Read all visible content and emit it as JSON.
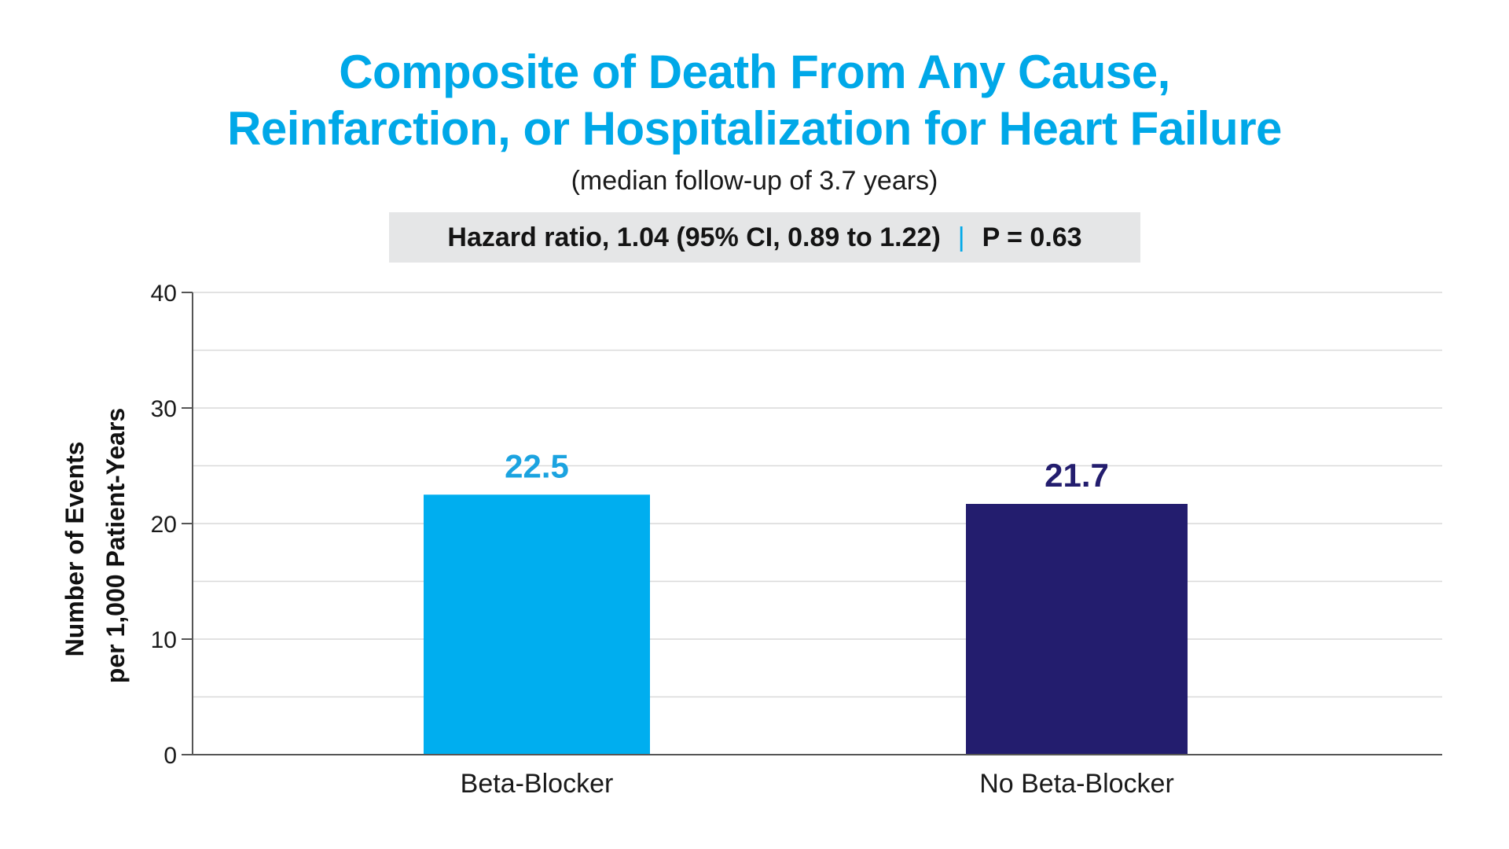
{
  "header": {
    "title_line_1": "Composite of Death From Any Cause,",
    "title_line_2": "Reinfarction, or Hospitalization for Heart Failure",
    "subtitle": "(median follow-up of 3.7 years)"
  },
  "stats": {
    "hazard_ratio": "Hazard ratio, 1.04 (95% CI, 0.89 to 1.22)",
    "separator": "|",
    "p_value": "P = 0.63"
  },
  "colors": {
    "accent": "#00a8e8",
    "beta_blocker": "#00aeef",
    "no_beta_blocker": "#231d6e",
    "gridline": "#d9d9d9",
    "axis": "#555555",
    "stats_background": "#e5e6e7"
  },
  "chart_data": {
    "type": "bar",
    "title": "Composite of Death From Any Cause, Reinfarction, or Hospitalization for Heart Failure",
    "subtitle": "(median follow-up of 3.7 years)",
    "xlabel": "",
    "ylabel_lines": [
      "Number of Events",
      "per 1,000 Patient-Years"
    ],
    "ylim": [
      0,
      40
    ],
    "y_ticks": [
      0,
      10,
      20,
      30,
      40
    ],
    "y_tick_labels": [
      "0",
      "10",
      "20",
      "30",
      "40"
    ],
    "minor_gridlines": [
      5,
      15,
      25,
      35
    ],
    "grid": true,
    "categories": [
      "Beta-Blocker",
      "No Beta-Blocker"
    ],
    "values": [
      22.5,
      21.7
    ],
    "value_labels": [
      "22.5",
      "21.7"
    ],
    "bar_colors": [
      "#00aeef",
      "#231d6e"
    ]
  }
}
